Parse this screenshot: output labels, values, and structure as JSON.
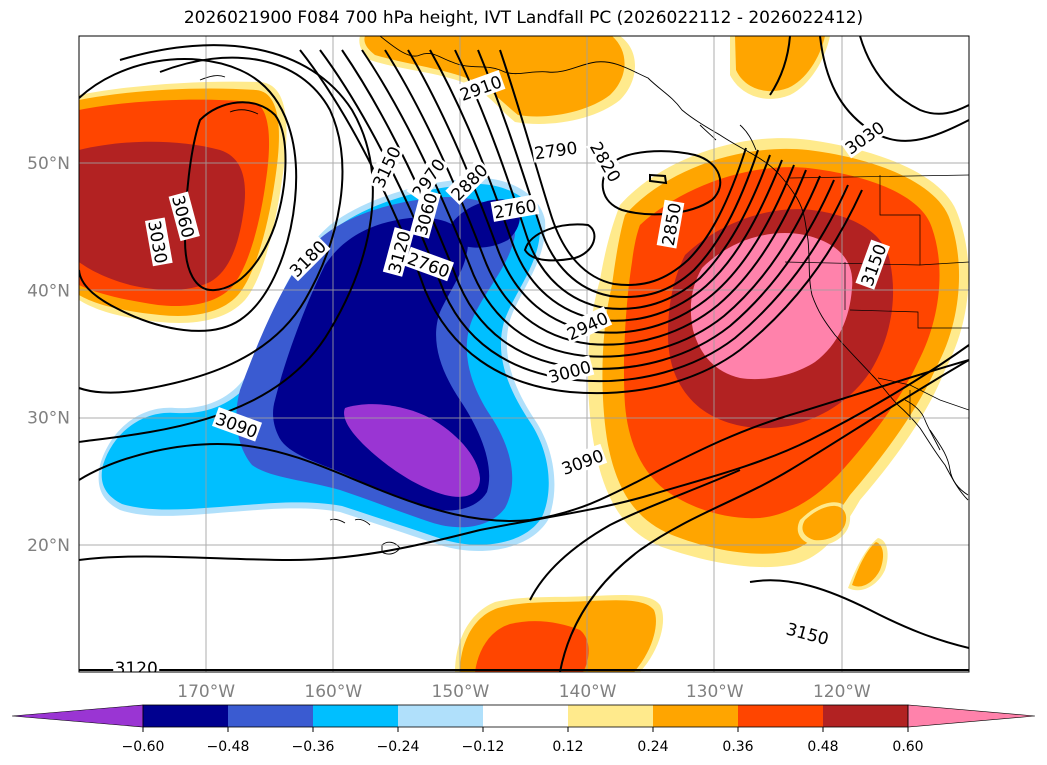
{
  "title": "2026021900 F084 700 hPa height, IVT Landfall PC (2026022112 - 2026022412)",
  "map": {
    "lon_range": [
      -180,
      -110
    ],
    "lat_range": [
      10,
      60
    ],
    "lon_ticks": [
      {
        "value": -170,
        "label": "170°W"
      },
      {
        "value": -160,
        "label": "160°W"
      },
      {
        "value": -150,
        "label": "150°W"
      },
      {
        "value": -140,
        "label": "140°W"
      },
      {
        "value": -130,
        "label": "130°W"
      },
      {
        "value": -120,
        "label": "120°W"
      }
    ],
    "lat_ticks": [
      {
        "value": 20,
        "label": "20°N"
      },
      {
        "value": 30,
        "label": "30°N"
      },
      {
        "value": 40,
        "label": "40°N"
      },
      {
        "value": 50,
        "label": "50°N"
      }
    ],
    "grid": true
  },
  "contour_labels": [
    {
      "text": "2910",
      "lon": -148.4,
      "lat": 55.9,
      "rot": -20
    },
    {
      "text": "2790",
      "lon": -142.5,
      "lat": 51.0,
      "rot": -8
    },
    {
      "text": "2820",
      "lon": -138.6,
      "lat": 50.1,
      "rot": 60
    },
    {
      "text": "3030",
      "lon": -118.2,
      "lat": 52.0,
      "rot": -35
    },
    {
      "text": "3150",
      "lon": -155.8,
      "lat": 49.7,
      "rot": -65
    },
    {
      "text": "2970",
      "lon": -152.5,
      "lat": 48.8,
      "rot": -55
    },
    {
      "text": "2880",
      "lon": -149.3,
      "lat": 48.5,
      "rot": -45
    },
    {
      "text": "2760",
      "lon": -145.7,
      "lat": 46.4,
      "rot": -10
    },
    {
      "text": "2850",
      "lon": -133.4,
      "lat": 45.2,
      "rot": -80
    },
    {
      "text": "3060",
      "lon": -152.7,
      "lat": 46.0,
      "rot": -75
    },
    {
      "text": "3060",
      "lon": -171.8,
      "lat": 45.8,
      "rot": 75
    },
    {
      "text": "3030",
      "lon": -173.8,
      "lat": 43.8,
      "rot": 80
    },
    {
      "text": "3120",
      "lon": -154.8,
      "lat": 43.0,
      "rot": -75
    },
    {
      "text": "3180",
      "lon": -162.0,
      "lat": 42.5,
      "rot": -45
    },
    {
      "text": "2760",
      "lon": -152.5,
      "lat": 42.0,
      "rot": 20
    },
    {
      "text": "3150",
      "lon": -117.5,
      "lat": 42.0,
      "rot": -70
    },
    {
      "text": "2940",
      "lon": -140.0,
      "lat": 37.2,
      "rot": -25
    },
    {
      "text": "3000",
      "lon": -141.4,
      "lat": 33.6,
      "rot": -15
    },
    {
      "text": "3090",
      "lon": -167.6,
      "lat": 29.4,
      "rot": 20
    },
    {
      "text": "3090",
      "lon": -140.4,
      "lat": 26.5,
      "rot": -20
    },
    {
      "text": "3150",
      "lon": -122.7,
      "lat": 13.0,
      "rot": 15
    },
    {
      "text": "3120",
      "lon": -175.5,
      "lat": 10.3,
      "rot": 0
    }
  ],
  "colorbar": {
    "colors": [
      "#9a35d3",
      "#00008f",
      "#3a5bd1",
      "#00bfff",
      "#b0e0fb",
      "#ffffff",
      "#ffea8c",
      "#ffa500",
      "#ff4500",
      "#b22222",
      "#ff82ab"
    ],
    "tick_labels": [
      "−0.60",
      "−0.48",
      "−0.36",
      "−0.24",
      "−0.12",
      "0.12",
      "0.24",
      "0.36",
      "0.48",
      "0.60"
    ],
    "extend": "both"
  }
}
